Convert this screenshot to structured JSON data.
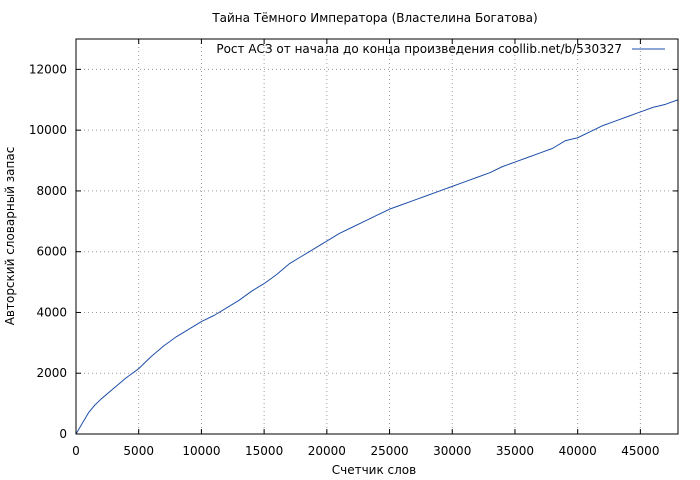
{
  "chart_data": {
    "type": "line",
    "title": "Тайна Тёмного Императора (Властелина Богатова)",
    "xlabel": "Счетчик слов",
    "ylabel": "Авторский словарный запас",
    "xlim": [
      0,
      48000
    ],
    "ylim": [
      0,
      13000
    ],
    "xticks": [
      0,
      5000,
      10000,
      15000,
      20000,
      25000,
      30000,
      35000,
      40000,
      45000
    ],
    "yticks": [
      0,
      2000,
      4000,
      6000,
      8000,
      10000,
      12000
    ],
    "grid": true,
    "legend_position": "top-right",
    "colors": {
      "series": "#1f4fa8",
      "grid": "#9a9a9a",
      "axis": "#000000"
    },
    "series": [
      {
        "name": "Рост АСЗ от начала до конца произведения coollib.net/b/530327",
        "x": [
          0,
          500,
          1000,
          1500,
          2000,
          3000,
          4000,
          5000,
          6000,
          7000,
          8000,
          9000,
          10000,
          11000,
          12000,
          13000,
          14000,
          15000,
          16000,
          17000,
          18000,
          19000,
          20000,
          21000,
          22000,
          23000,
          24000,
          25000,
          26000,
          27000,
          28000,
          29000,
          30000,
          31000,
          32000,
          33000,
          34000,
          35000,
          36000,
          37000,
          38000,
          39000,
          40000,
          41000,
          42000,
          43000,
          44000,
          45000,
          46000,
          47000,
          48000
        ],
        "y": [
          0,
          350,
          700,
          950,
          1150,
          1500,
          1850,
          2150,
          2550,
          2900,
          3200,
          3450,
          3700,
          3900,
          4150,
          4400,
          4700,
          4950,
          5250,
          5600,
          5850,
          6100,
          6350,
          6600,
          6800,
          7000,
          7200,
          7400,
          7550,
          7700,
          7850,
          8000,
          8150,
          8300,
          8450,
          8600,
          8800,
          8950,
          9100,
          9250,
          9400,
          9650,
          9750,
          9950,
          10150,
          10300,
          10450,
          10600,
          10750,
          10850,
          11000
        ]
      }
    ]
  }
}
